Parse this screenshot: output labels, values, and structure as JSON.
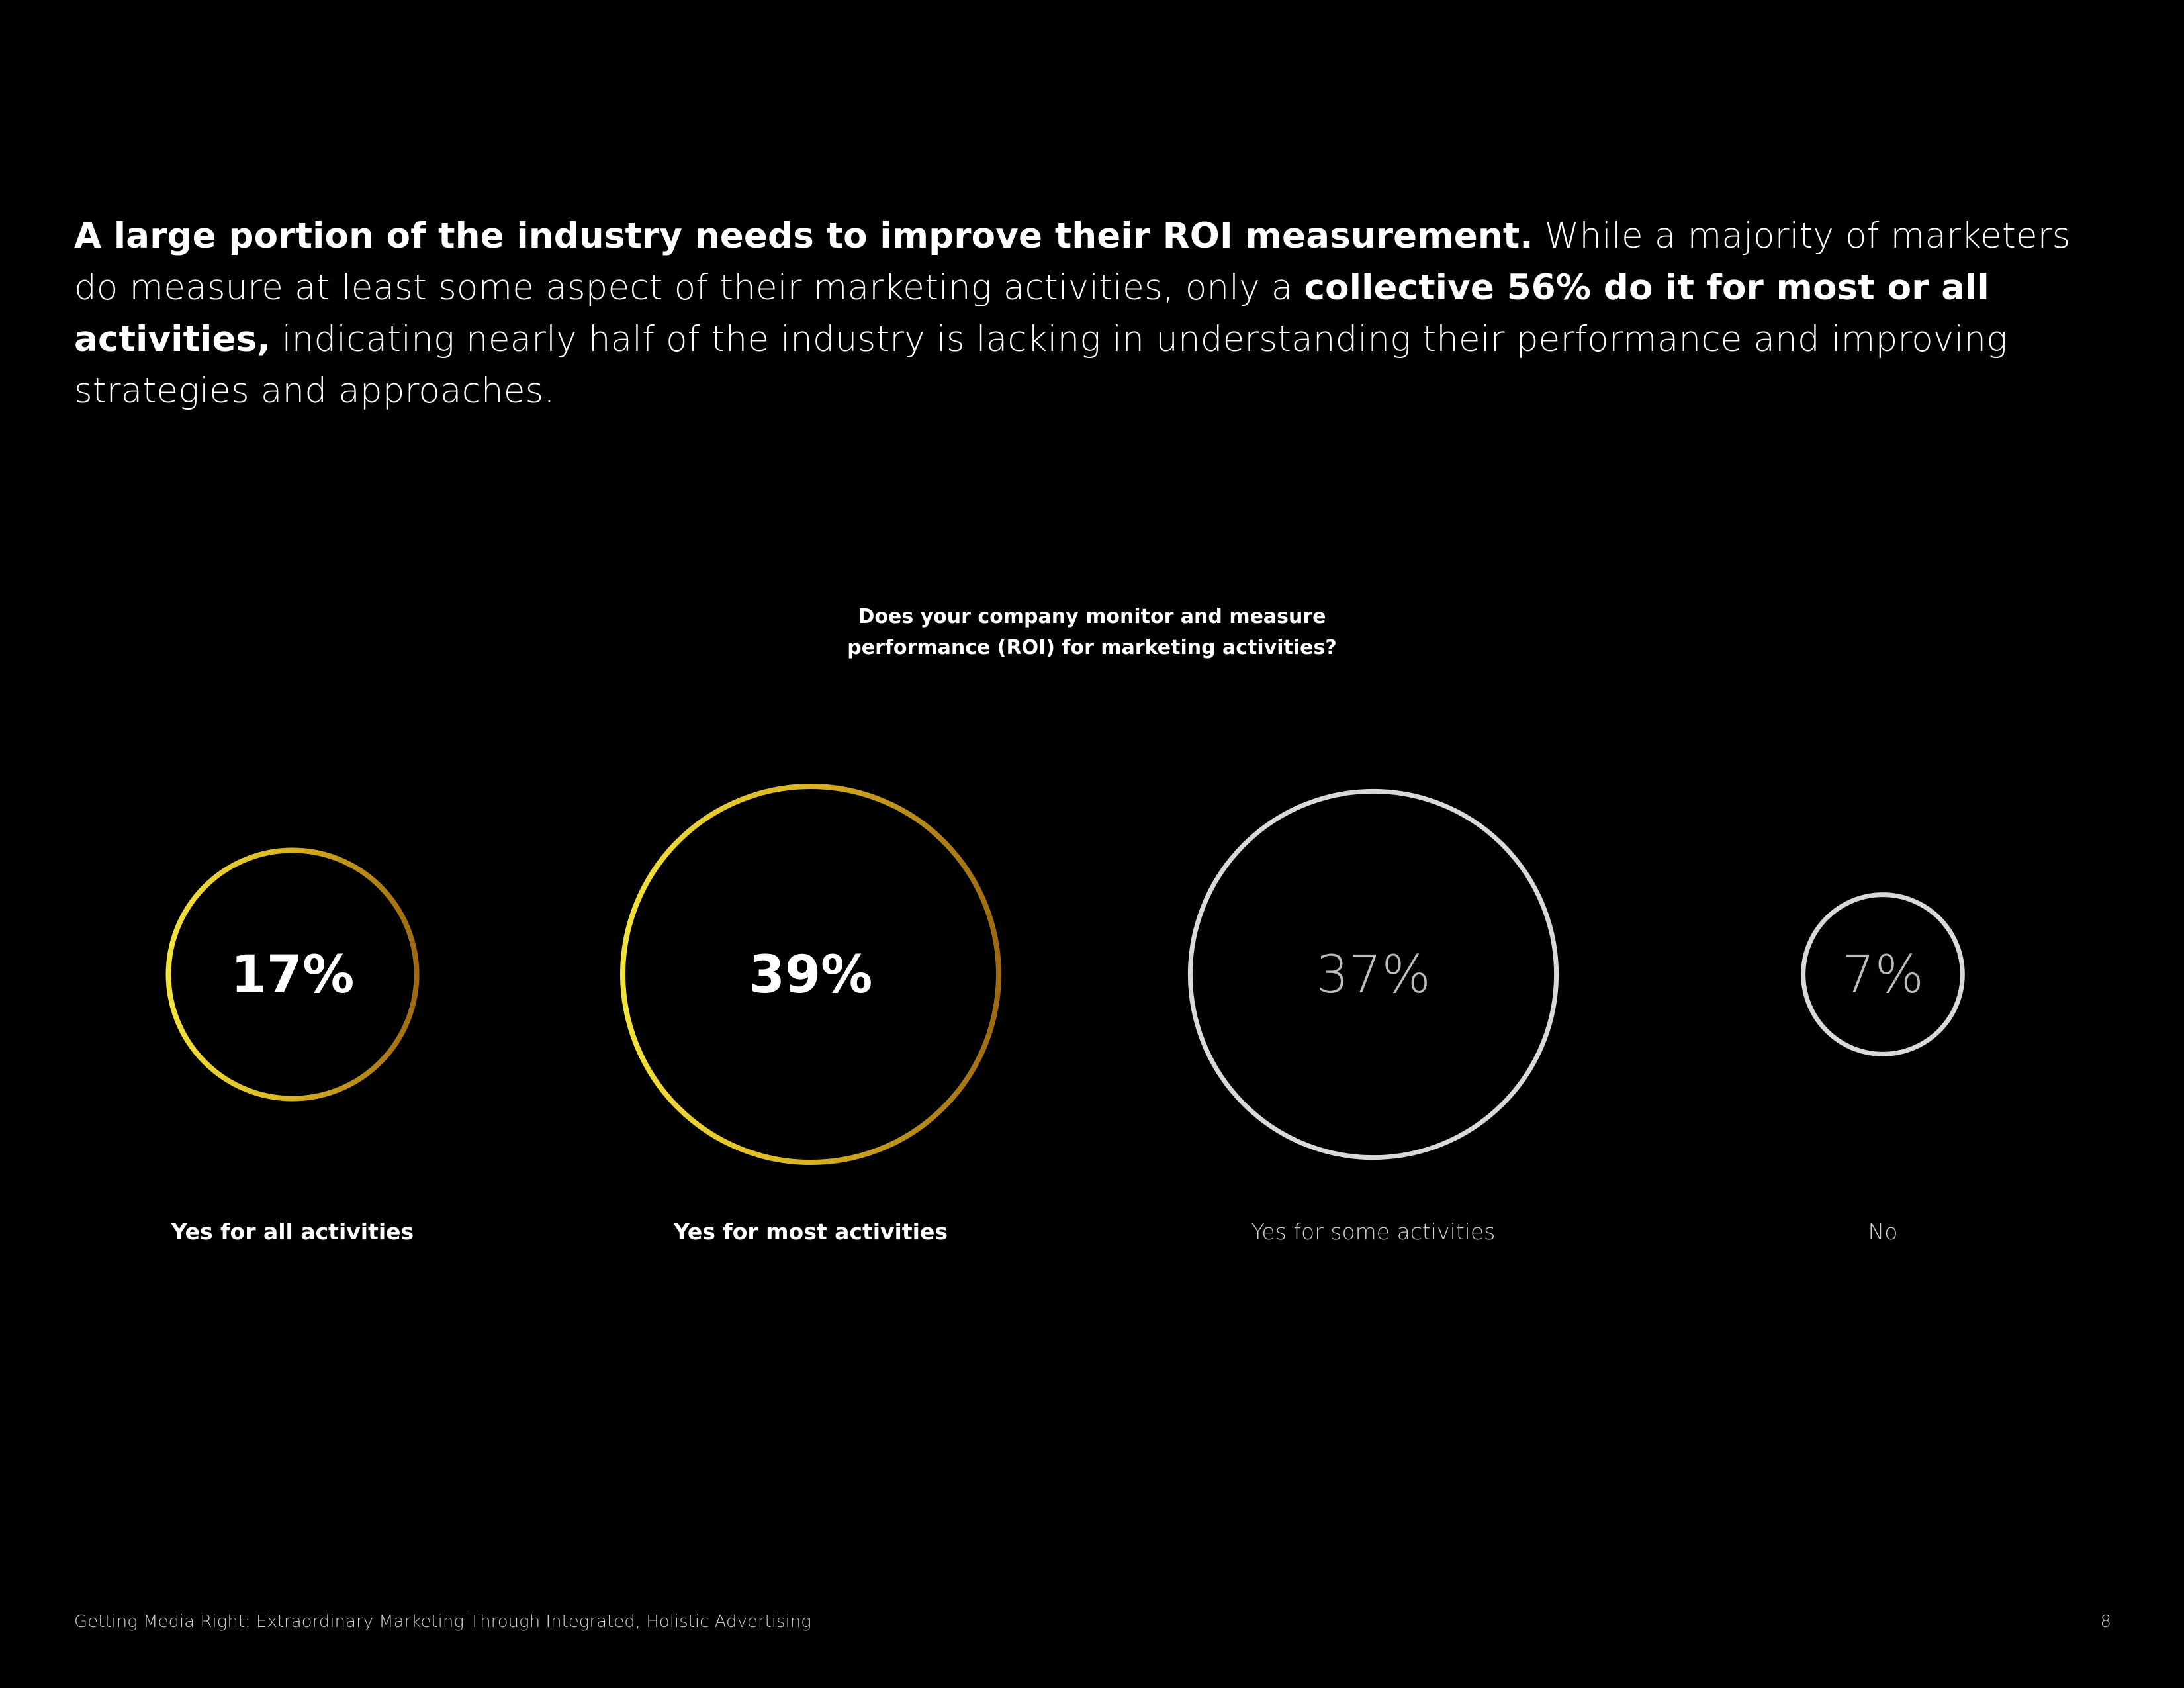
{
  "intro": {
    "bold_lead": "A large portion of the industry needs to improve their ROI measurement.",
    "text_1": " While a majority of marketers do measure at least some aspect of their marketing activities, only a ",
    "bold_mid": "collective 56% do it for most or all activities,",
    "text_2": " indicating nearly half of the industry is lacking in understanding their performance and improving strategies and approaches."
  },
  "question": {
    "line1": "Does your company monitor and measure",
    "line2": "performance (ROI) for marketing activities?"
  },
  "colors": {
    "gold_light": "#f4e23a",
    "gold_dark": "#9e6a12",
    "silver": "#d9d9d9",
    "text_dim": "#bdbdbd"
  },
  "chart_data": {
    "type": "bubble",
    "title": "Does your company monitor and measure performance (ROI) for marketing activities?",
    "unit": "%",
    "categories": [
      "Yes for all activities",
      "Yes for most activities",
      "Yes for some activities",
      "No"
    ],
    "values": [
      17,
      39,
      37,
      7
    ],
    "value_labels": [
      "17%",
      "39%",
      "37%",
      "7%"
    ],
    "styles": [
      "gold",
      "gold",
      "silver",
      "silver"
    ],
    "emphasis": [
      true,
      true,
      false,
      false
    ]
  },
  "footer": {
    "title": "Getting Media Right: Extraordinary Marketing Through Integrated, Holistic Advertising",
    "page_number": "8"
  }
}
